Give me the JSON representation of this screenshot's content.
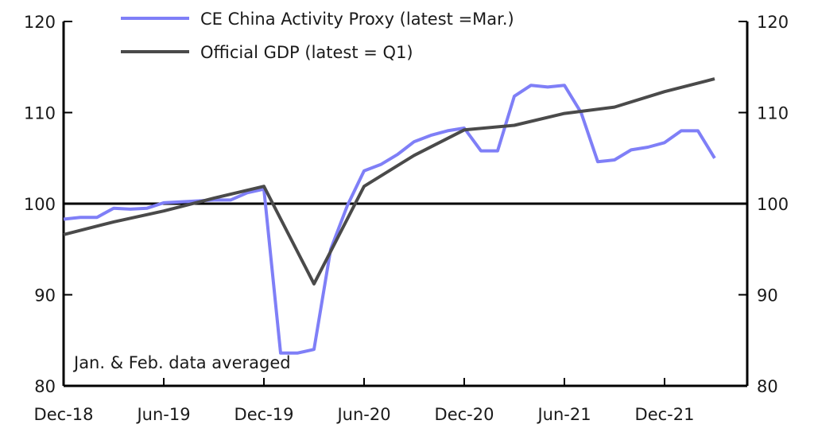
{
  "chart_data": {
    "type": "line",
    "legend": {
      "placement": "top-left"
    },
    "note": "Jan. & Feb. data averaged",
    "x_tick_labels": [
      "Dec-18",
      "Jun-19",
      "Dec-19",
      "Jun-20",
      "Dec-20",
      "Jun-21",
      "Dec-21"
    ],
    "x_tick_months": [
      0,
      6,
      12,
      18,
      24,
      30,
      36
    ],
    "ylim": [
      80,
      120
    ],
    "y_ticks": [
      80,
      90,
      100,
      110,
      120
    ],
    "y_tick_labels": [
      "80",
      "90",
      "100",
      "110",
      "120"
    ],
    "reference_line": 100,
    "series": [
      {
        "name": "CE China Activity Proxy (latest =Mar.)",
        "color": "#7f7ff7",
        "x": [
          "Dec-18",
          "Jan-19",
          "Feb-19",
          "Mar-19",
          "Apr-19",
          "May-19",
          "Jun-19",
          "Jul-19",
          "Aug-19",
          "Sep-19",
          "Oct-19",
          "Nov-19",
          "Dec-19",
          "Jan-20",
          "Feb-20",
          "Mar-20",
          "Apr-20",
          "May-20",
          "Jun-20",
          "Jul-20",
          "Aug-20",
          "Sep-20",
          "Oct-20",
          "Nov-20",
          "Dec-20",
          "Jan-21",
          "Feb-21",
          "Mar-21",
          "Apr-21",
          "May-21",
          "Jun-21",
          "Jul-21",
          "Aug-21",
          "Sep-21",
          "Oct-21",
          "Nov-21",
          "Dec-21",
          "Jan-22",
          "Feb-22",
          "Mar-22"
        ],
        "values": [
          98.3,
          98.5,
          98.5,
          99.5,
          99.4,
          99.5,
          100.1,
          100.2,
          100.3,
          100.4,
          100.4,
          101.2,
          101.6,
          83.6,
          83.6,
          84.0,
          95.0,
          99.8,
          103.6,
          104.3,
          105.4,
          106.8,
          107.5,
          108.0,
          108.3,
          105.8,
          105.8,
          111.8,
          113.0,
          112.8,
          113.0,
          110.0,
          104.6,
          104.8,
          105.9,
          106.2,
          106.7,
          108.0,
          108.0,
          105.0
        ]
      },
      {
        "name": "Official GDP (latest = Q1)",
        "color": "#4a4a4a",
        "x": [
          "Q4-18",
          "Q1-19",
          "Q2-19",
          "Q3-19",
          "Q4-19",
          "Q1-20",
          "Q2-20",
          "Q3-20",
          "Q4-20",
          "Q1-21",
          "Q2-21",
          "Q3-21",
          "Q4-21",
          "Q1-22"
        ],
        "x_months": [
          0,
          3,
          6,
          9,
          12,
          15,
          18,
          21,
          24,
          27,
          30,
          33,
          36,
          39
        ],
        "values": [
          96.6,
          98.0,
          99.2,
          100.6,
          101.9,
          91.2,
          101.9,
          105.3,
          108.1,
          108.6,
          109.9,
          110.6,
          112.3,
          113.7
        ]
      }
    ]
  }
}
